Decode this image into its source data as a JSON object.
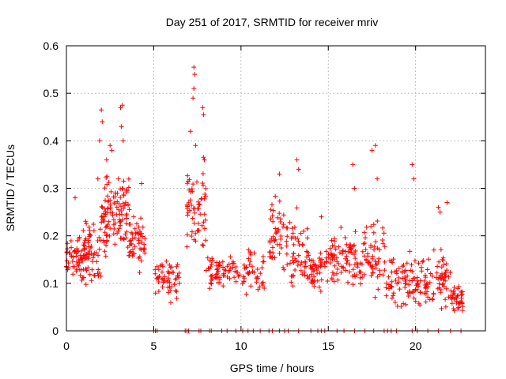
{
  "chart_data": {
    "type": "scatter",
    "title": "Day 251 of 2017, SRMTID for receiver mriv",
    "xlabel": "GPS time / hours",
    "ylabel": "SRMTID / TECUs",
    "xlim": [
      0,
      24
    ],
    "ylim": [
      0,
      0.6
    ],
    "xticks": [
      0,
      5,
      10,
      15,
      20
    ],
    "xtick_labels": [
      "0",
      "5",
      "10",
      "15",
      "20"
    ],
    "yticks": [
      0,
      0.1,
      0.2,
      0.3,
      0.4,
      0.5,
      0.6
    ],
    "ytick_labels": [
      "0",
      "0.1",
      "0.2",
      "0.3",
      "0.4",
      "0.5",
      "0.6"
    ],
    "grid": true,
    "marker": "+",
    "series": [
      {
        "name": "SRMTID",
        "color": "#ff0000",
        "clusters": [
          {
            "x_range": [
              0.0,
              1.0
            ],
            "y_mean": 0.15,
            "y_spread": 0.06,
            "count": 60
          },
          {
            "x_range": [
              1.0,
              2.0
            ],
            "y_mean": 0.17,
            "y_spread": 0.07,
            "count": 60
          },
          {
            "x_range": [
              2.0,
              2.8
            ],
            "y_mean": 0.24,
            "y_spread": 0.09,
            "count": 60
          },
          {
            "x_range": [
              2.8,
              3.6
            ],
            "y_mean": 0.25,
            "y_spread": 0.1,
            "count": 55
          },
          {
            "x_range": [
              3.6,
              4.5
            ],
            "y_mean": 0.19,
            "y_spread": 0.06,
            "count": 50
          },
          {
            "x_range": [
              5.0,
              6.5
            ],
            "y_mean": 0.11,
            "y_spread": 0.05,
            "count": 55
          },
          {
            "x_range": [
              6.9,
              8.0
            ],
            "y_mean": 0.26,
            "y_spread": 0.1,
            "count": 60
          },
          {
            "x_range": [
              8.0,
              9.3
            ],
            "y_mean": 0.12,
            "y_spread": 0.04,
            "count": 50
          },
          {
            "x_range": [
              9.3,
              11.5
            ],
            "y_mean": 0.13,
            "y_spread": 0.05,
            "count": 60
          },
          {
            "x_range": [
              11.6,
              12.6
            ],
            "y_mean": 0.2,
            "y_spread": 0.08,
            "count": 45
          },
          {
            "x_range": [
              12.6,
              13.8
            ],
            "y_mean": 0.16,
            "y_spread": 0.09,
            "count": 55
          },
          {
            "x_range": [
              13.8,
              15.0
            ],
            "y_mean": 0.13,
            "y_spread": 0.05,
            "count": 50
          },
          {
            "x_range": [
              15.0,
              16.0
            ],
            "y_mean": 0.15,
            "y_spread": 0.06,
            "count": 45
          },
          {
            "x_range": [
              16.0,
              17.0
            ],
            "y_mean": 0.14,
            "y_spread": 0.07,
            "count": 45
          },
          {
            "x_range": [
              17.0,
              18.3
            ],
            "y_mean": 0.16,
            "y_spread": 0.08,
            "count": 55
          },
          {
            "x_range": [
              18.3,
              19.6
            ],
            "y_mean": 0.11,
            "y_spread": 0.06,
            "count": 50
          },
          {
            "x_range": [
              19.6,
              21.0
            ],
            "y_mean": 0.1,
            "y_spread": 0.06,
            "count": 60
          },
          {
            "x_range": [
              21.0,
              22.0
            ],
            "y_mean": 0.11,
            "y_spread": 0.06,
            "count": 45
          },
          {
            "x_range": [
              22.0,
              22.7
            ],
            "y_mean": 0.07,
            "y_spread": 0.04,
            "count": 40
          }
        ],
        "peaks": [
          {
            "x": 0.5,
            "y": 0.28
          },
          {
            "x": 1.8,
            "y": 0.32
          },
          {
            "x": 1.9,
            "y": 0.4
          },
          {
            "x": 2.0,
            "y": 0.465
          },
          {
            "x": 2.05,
            "y": 0.44
          },
          {
            "x": 2.3,
            "y": 0.36
          },
          {
            "x": 2.5,
            "y": 0.39
          },
          {
            "x": 2.6,
            "y": 0.38
          },
          {
            "x": 3.1,
            "y": 0.47
          },
          {
            "x": 3.2,
            "y": 0.475
          },
          {
            "x": 3.15,
            "y": 0.43
          },
          {
            "x": 3.25,
            "y": 0.4
          },
          {
            "x": 4.3,
            "y": 0.31
          },
          {
            "x": 7.1,
            "y": 0.42
          },
          {
            "x": 7.3,
            "y": 0.555
          },
          {
            "x": 7.35,
            "y": 0.54
          },
          {
            "x": 7.3,
            "y": 0.51
          },
          {
            "x": 7.25,
            "y": 0.49
          },
          {
            "x": 7.4,
            "y": 0.39
          },
          {
            "x": 7.8,
            "y": 0.47
          },
          {
            "x": 7.85,
            "y": 0.455
          },
          {
            "x": 7.9,
            "y": 0.36
          },
          {
            "x": 12.2,
            "y": 0.33
          },
          {
            "x": 13.2,
            "y": 0.36
          },
          {
            "x": 13.3,
            "y": 0.34
          },
          {
            "x": 14.6,
            "y": 0.24
          },
          {
            "x": 16.4,
            "y": 0.35
          },
          {
            "x": 16.5,
            "y": 0.3
          },
          {
            "x": 17.5,
            "y": 0.38
          },
          {
            "x": 17.7,
            "y": 0.39
          },
          {
            "x": 17.8,
            "y": 0.32
          },
          {
            "x": 19.8,
            "y": 0.35
          },
          {
            "x": 19.9,
            "y": 0.32
          },
          {
            "x": 21.3,
            "y": 0.26
          },
          {
            "x": 21.4,
            "y": 0.25
          },
          {
            "x": 21.8,
            "y": 0.27
          }
        ],
        "zero_points_x": [
          5.0,
          5.1,
          5.2,
          6.8,
          6.9,
          7.0,
          7.6,
          7.7,
          8.2,
          8.3,
          8.9,
          9.2,
          9.7,
          10.1,
          10.4,
          10.7,
          11.1,
          11.6,
          11.8,
          12.2,
          12.5,
          12.7,
          13.3,
          14.0,
          14.4,
          14.6,
          14.8,
          15.5,
          15.9,
          16.5,
          17.1,
          17.6,
          18.2,
          18.4,
          18.6,
          18.9,
          19.8,
          20.1,
          20.7,
          21.3,
          22.0,
          22.6
        ]
      }
    ]
  }
}
